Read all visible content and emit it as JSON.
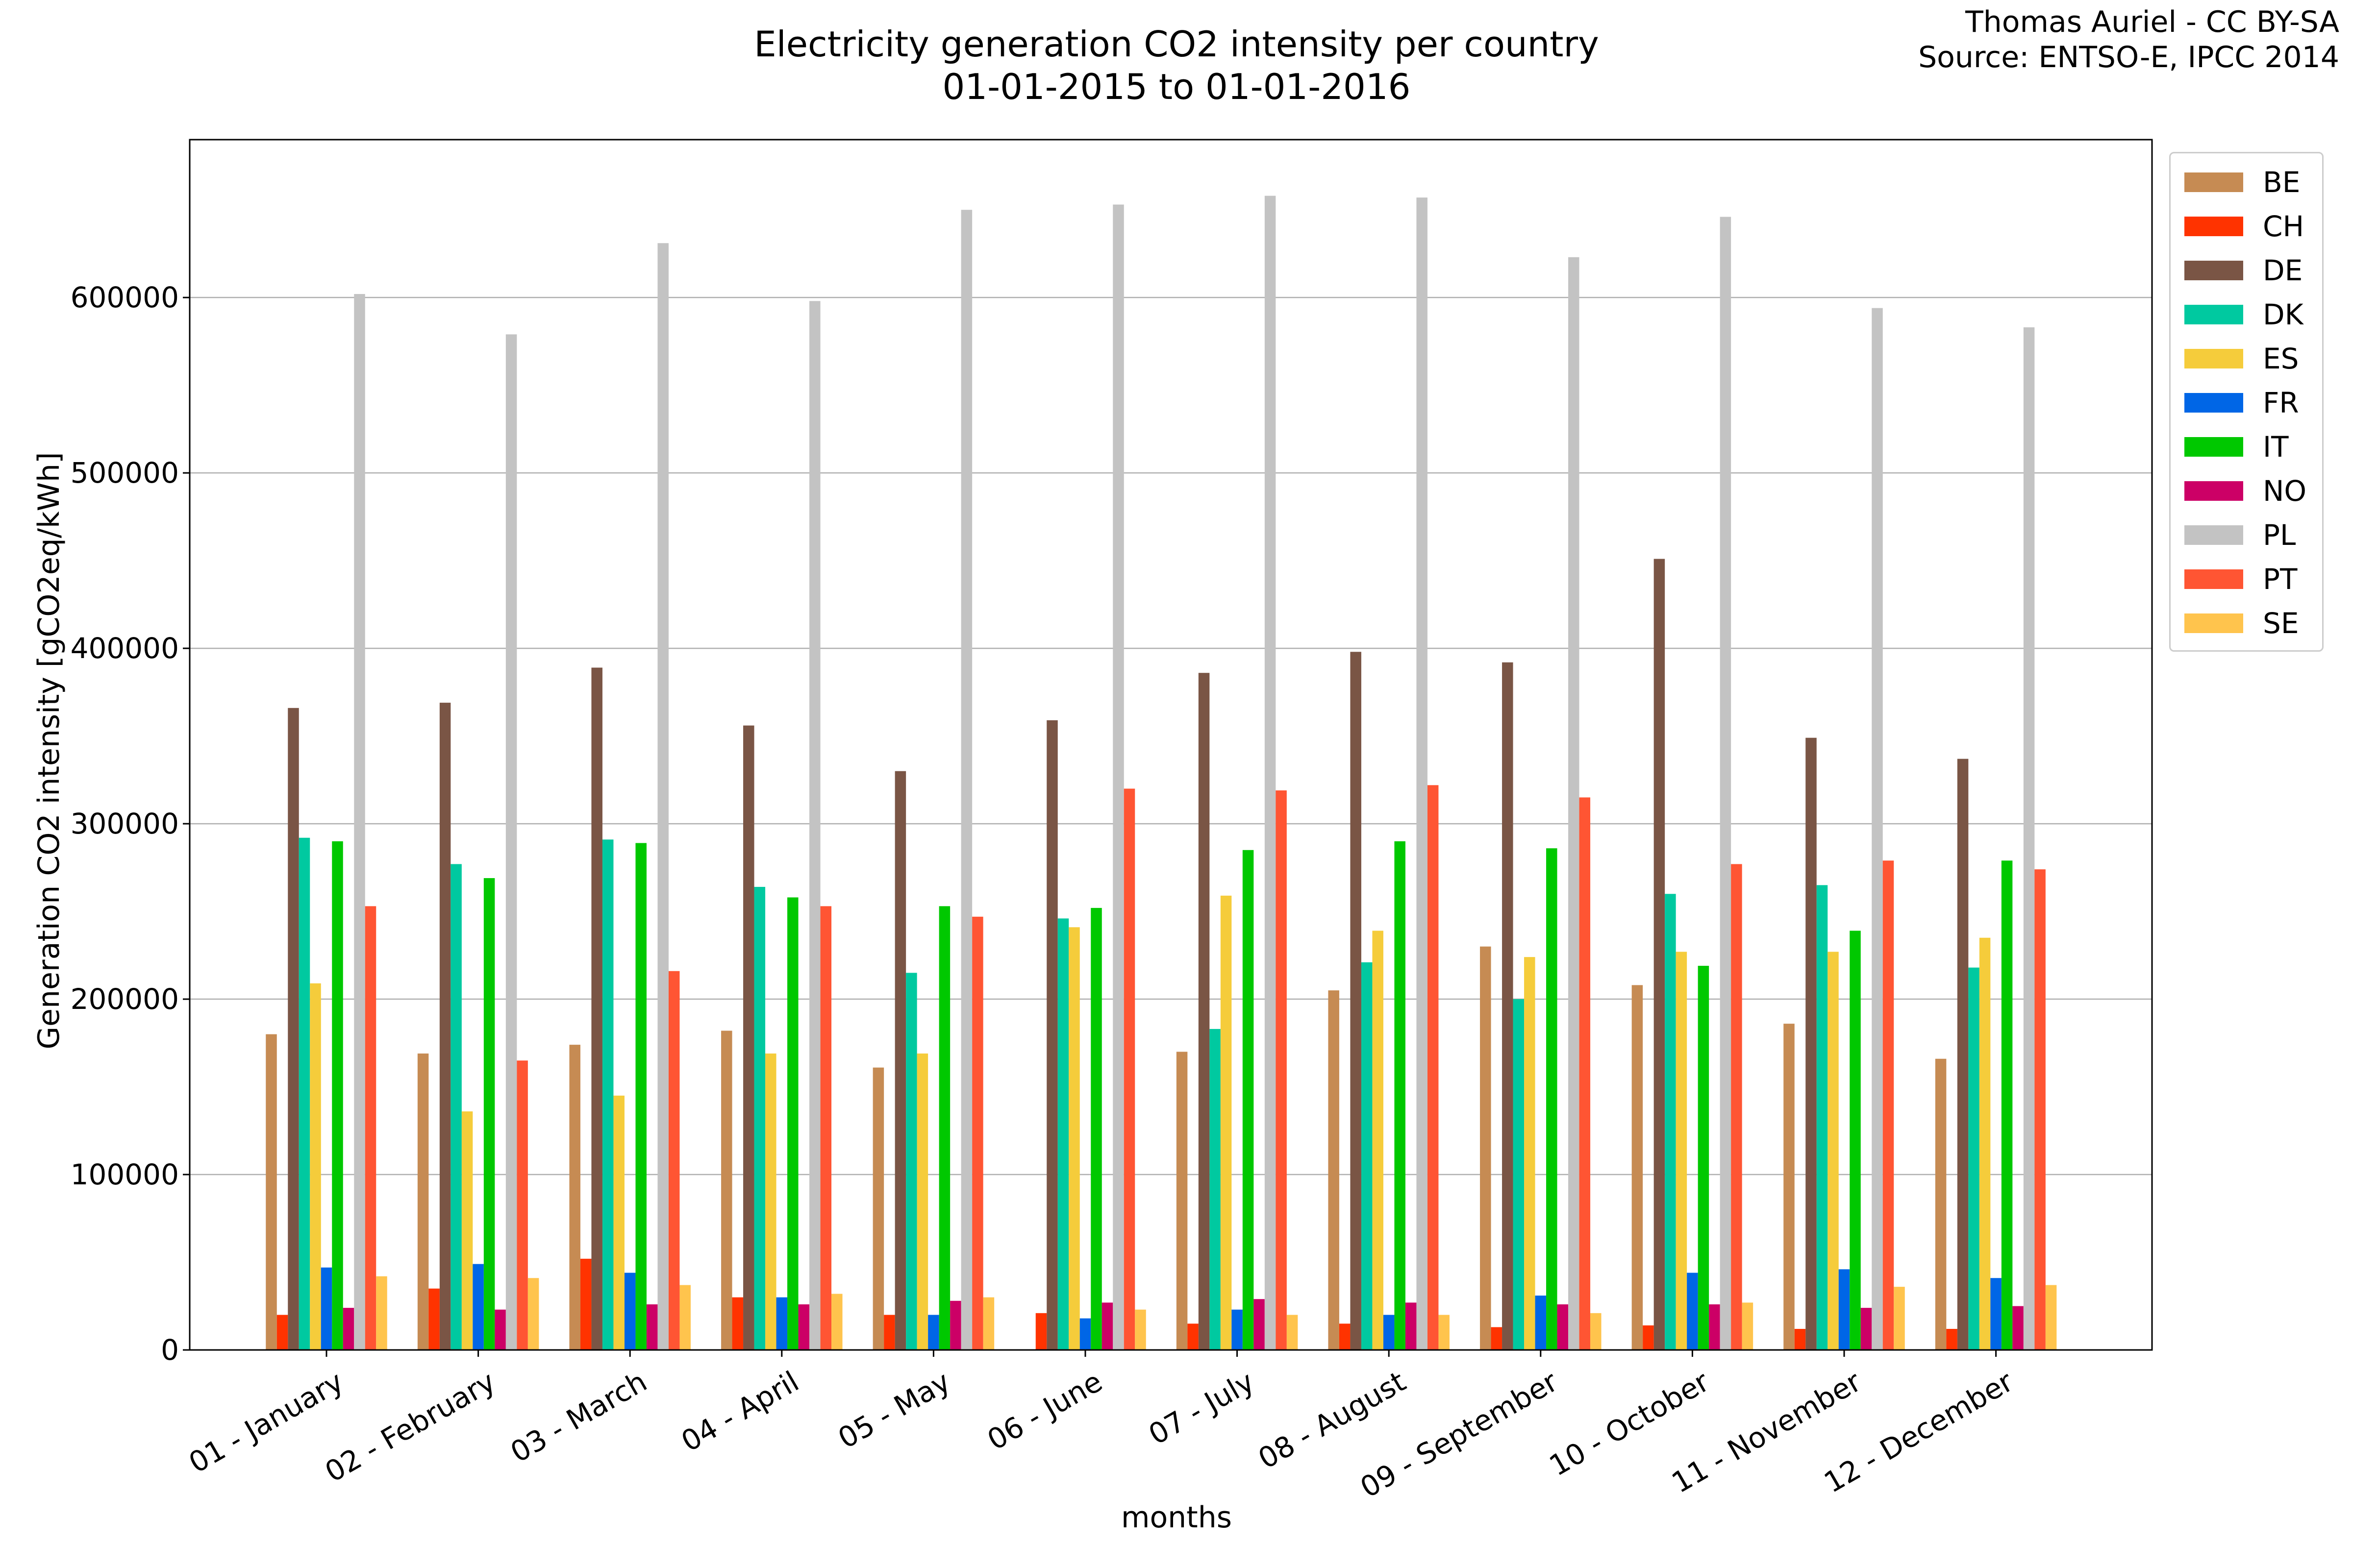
{
  "title_line1": "Electricity generation CO2 intensity per country",
  "title_line2": "01-01-2015 to 01-01-2016",
  "credit_line1": "Thomas Auriel - CC BY-SA",
  "credit_line2": "Source: ENTSO-E, IPCC 2014",
  "chart_data": {
    "type": "bar",
    "xlabel": "months",
    "ylabel": "Generation CO2 intensity [gCO2eq/kWh]",
    "ylim": [
      0,
      690000
    ],
    "yticks": [
      "0",
      "100000",
      "200000",
      "300000",
      "400000",
      "500000",
      "600000"
    ],
    "ytick_values": [
      0,
      100000,
      200000,
      300000,
      400000,
      500000,
      600000
    ],
    "grid": "horizontal",
    "legend_position": "right-top",
    "categories": [
      "01 - January",
      "02 - February",
      "03 - March",
      "04 - April",
      "05 - May",
      "06 - June",
      "07 - July",
      "08 - August",
      "09 - September",
      "10 - October",
      "11 - November",
      "12 - December"
    ],
    "series": [
      {
        "name": "BE",
        "color": "#c68b53",
        "values": [
          180000,
          169000,
          174000,
          182000,
          161000,
          0,
          170000,
          205000,
          230000,
          208000,
          186000,
          166000
        ]
      },
      {
        "name": "CH",
        "color": "#ff3300",
        "values": [
          20000,
          35000,
          52000,
          30000,
          20000,
          21000,
          15000,
          15000,
          13000,
          14000,
          12000,
          12000
        ]
      },
      {
        "name": "DE",
        "color": "#7a5545",
        "values": [
          366000,
          369000,
          389000,
          356000,
          330000,
          359000,
          386000,
          398000,
          392000,
          451000,
          349000,
          337000
        ]
      },
      {
        "name": "DK",
        "color": "#00c9a0",
        "values": [
          292000,
          277000,
          291000,
          264000,
          215000,
          246000,
          183000,
          221000,
          200000,
          260000,
          265000,
          218000
        ]
      },
      {
        "name": "ES",
        "color": "#f5cc3b",
        "values": [
          209000,
          136000,
          145000,
          169000,
          169000,
          241000,
          259000,
          239000,
          224000,
          227000,
          227000,
          235000
        ]
      },
      {
        "name": "FR",
        "color": "#0066e6",
        "values": [
          47000,
          49000,
          44000,
          30000,
          20000,
          18000,
          23000,
          20000,
          31000,
          44000,
          46000,
          41000
        ]
      },
      {
        "name": "IT",
        "color": "#00c800",
        "values": [
          290000,
          269000,
          289000,
          258000,
          253000,
          252000,
          285000,
          290000,
          286000,
          219000,
          239000,
          279000
        ]
      },
      {
        "name": "NO",
        "color": "#cc0066",
        "values": [
          24000,
          23000,
          26000,
          26000,
          28000,
          27000,
          29000,
          27000,
          26000,
          26000,
          24000,
          25000
        ]
      },
      {
        "name": "PL",
        "color": "#c3c3c3",
        "values": [
          602000,
          579000,
          631000,
          598000,
          650000,
          653000,
          658000,
          657000,
          623000,
          646000,
          594000,
          583000
        ]
      },
      {
        "name": "PT",
        "color": "#ff5533",
        "values": [
          253000,
          165000,
          216000,
          253000,
          247000,
          320000,
          319000,
          322000,
          315000,
          277000,
          279000,
          274000
        ]
      },
      {
        "name": "SE",
        "color": "#ffc44d",
        "values": [
          42000,
          41000,
          37000,
          32000,
          30000,
          23000,
          20000,
          20000,
          21000,
          27000,
          36000,
          37000
        ]
      }
    ]
  }
}
